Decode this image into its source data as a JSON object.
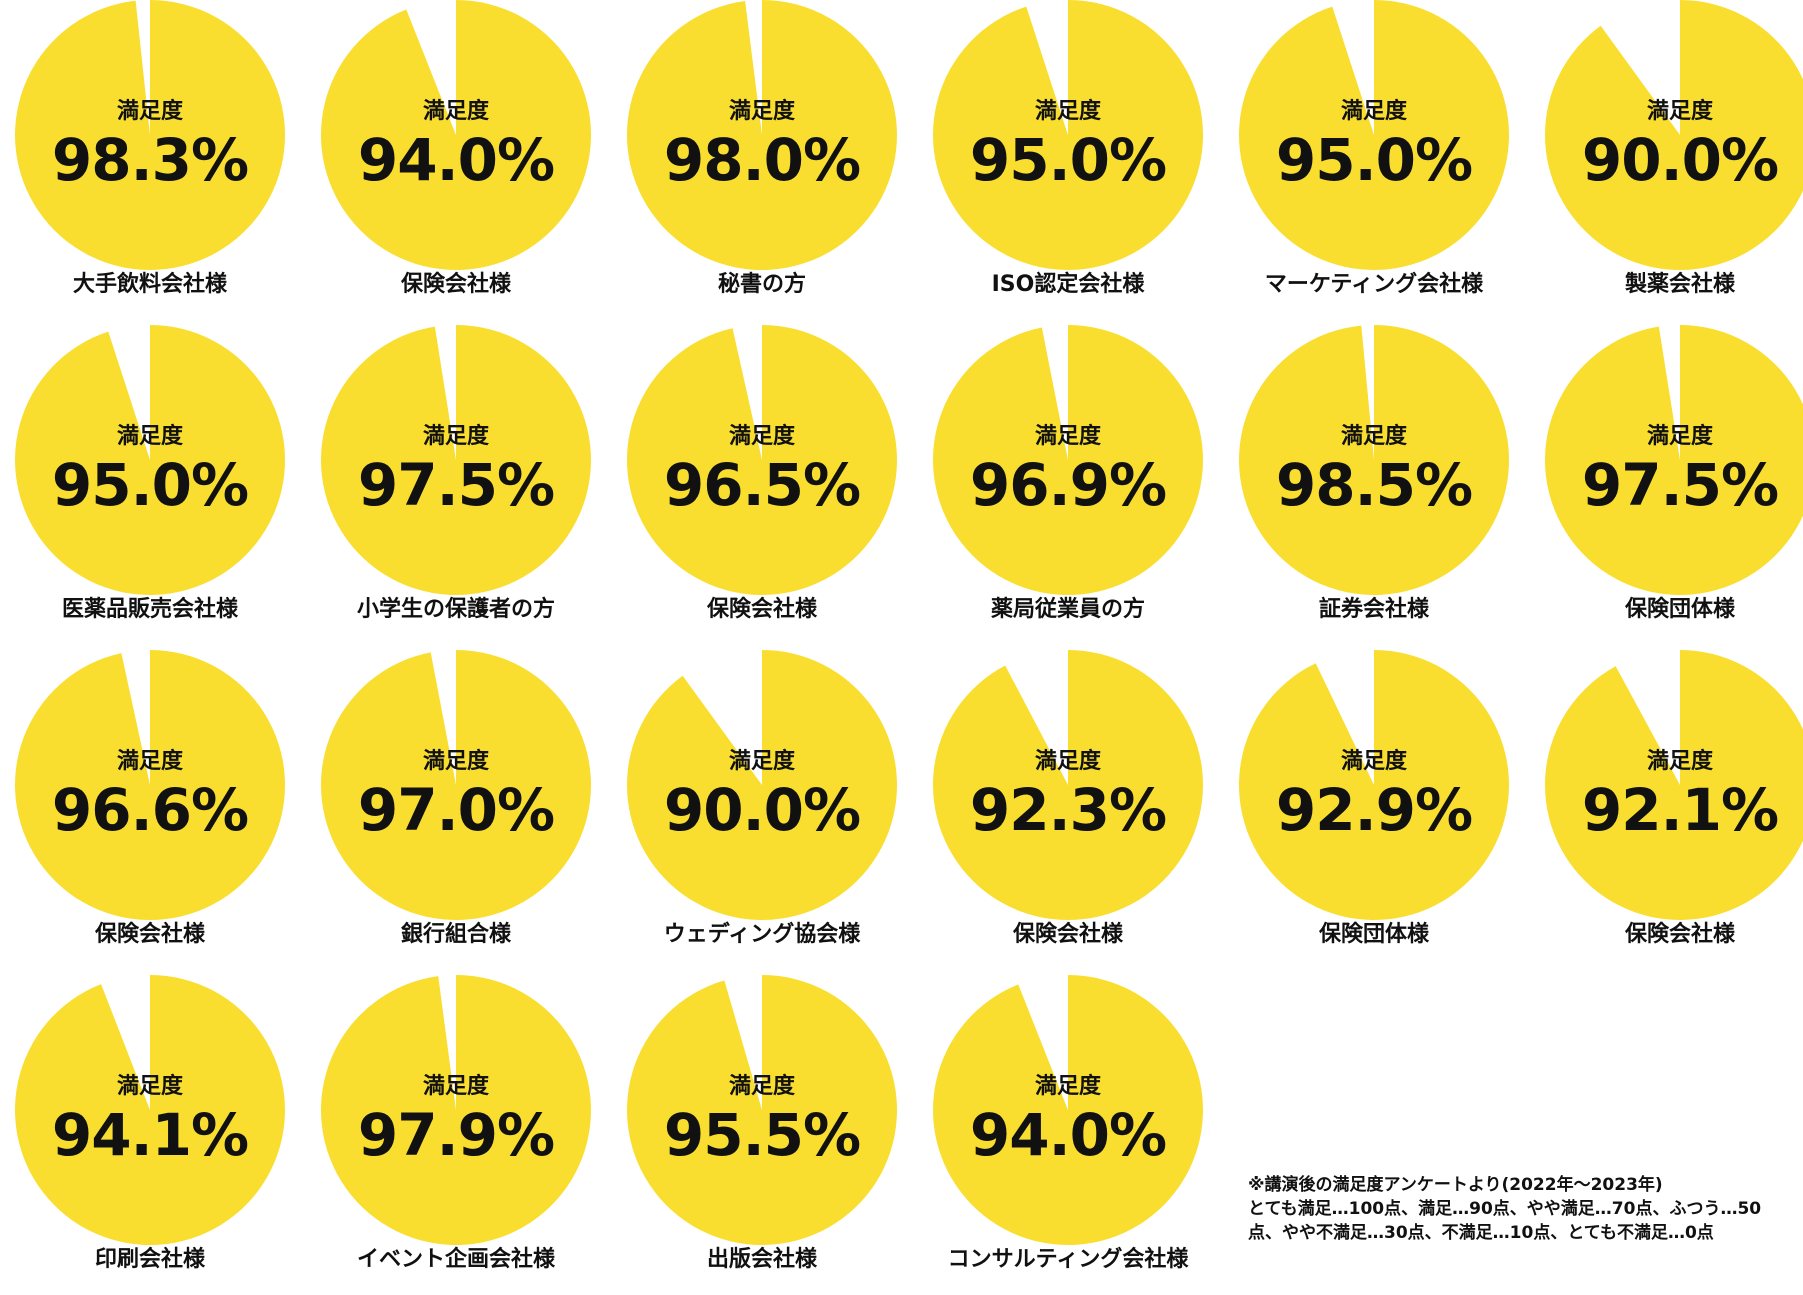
{
  "colors": {
    "pie_fill": "#F9DE2F",
    "text": "#111111",
    "background": "#ffffff"
  },
  "chart_data": [
    {
      "type": "pie",
      "title": "満足度",
      "value": 98.3,
      "value_label": "98.3%",
      "label": "大手飲料会社様"
    },
    {
      "type": "pie",
      "title": "満足度",
      "value": 94.0,
      "value_label": "94.0%",
      "label": "保険会社様"
    },
    {
      "type": "pie",
      "title": "満足度",
      "value": 98.0,
      "value_label": "98.0%",
      "label": "秘書の方"
    },
    {
      "type": "pie",
      "title": "満足度",
      "value": 95.0,
      "value_label": "95.0%",
      "label": "ISO認定会社様"
    },
    {
      "type": "pie",
      "title": "満足度",
      "value": 95.0,
      "value_label": "95.0%",
      "label": "マーケティング会社様"
    },
    {
      "type": "pie",
      "title": "満足度",
      "value": 90.0,
      "value_label": "90.0%",
      "label": "製薬会社様"
    },
    {
      "type": "pie",
      "title": "満足度",
      "value": 95.0,
      "value_label": "95.0%",
      "label": "医薬品販売会社様"
    },
    {
      "type": "pie",
      "title": "満足度",
      "value": 97.5,
      "value_label": "97.5%",
      "label": "小学生の保護者の方"
    },
    {
      "type": "pie",
      "title": "満足度",
      "value": 96.5,
      "value_label": "96.5%",
      "label": "保険会社様"
    },
    {
      "type": "pie",
      "title": "満足度",
      "value": 96.9,
      "value_label": "96.9%",
      "label": "薬局従業員の方"
    },
    {
      "type": "pie",
      "title": "満足度",
      "value": 98.5,
      "value_label": "98.5%",
      "label": "証券会社様"
    },
    {
      "type": "pie",
      "title": "満足度",
      "value": 97.5,
      "value_label": "97.5%",
      "label": "保険団体様"
    },
    {
      "type": "pie",
      "title": "満足度",
      "value": 96.6,
      "value_label": "96.6%",
      "label": "保険会社様"
    },
    {
      "type": "pie",
      "title": "満足度",
      "value": 97.0,
      "value_label": "97.0%",
      "label": "銀行組合様"
    },
    {
      "type": "pie",
      "title": "満足度",
      "value": 90.0,
      "value_label": "90.0%",
      "label": "ウェディング協会様"
    },
    {
      "type": "pie",
      "title": "満足度",
      "value": 92.3,
      "value_label": "92.3%",
      "label": "保険会社様"
    },
    {
      "type": "pie",
      "title": "満足度",
      "value": 92.9,
      "value_label": "92.9%",
      "label": "保険団体様"
    },
    {
      "type": "pie",
      "title": "満足度",
      "value": 92.1,
      "value_label": "92.1%",
      "label": "保険会社様"
    },
    {
      "type": "pie",
      "title": "満足度",
      "value": 94.1,
      "value_label": "94.1%",
      "label": "印刷会社様"
    },
    {
      "type": "pie",
      "title": "満足度",
      "value": 97.9,
      "value_label": "97.9%",
      "label": "イベント企画会社様"
    },
    {
      "type": "pie",
      "title": "満足度",
      "value": 95.5,
      "value_label": "95.5%",
      "label": "出版会社様"
    },
    {
      "type": "pie",
      "title": "満足度",
      "value": 94.0,
      "value_label": "94.0%",
      "label": "コンサルティング会社様"
    }
  ],
  "footnote": {
    "line1": "※講演後の満足度アンケートより(2022年〜2023年)",
    "line2": "とても満足…100点、満足…90点、やや満足…70点、ふつう…50点、やや不満足…30点、不満足…10点、とても不満足…0点"
  }
}
